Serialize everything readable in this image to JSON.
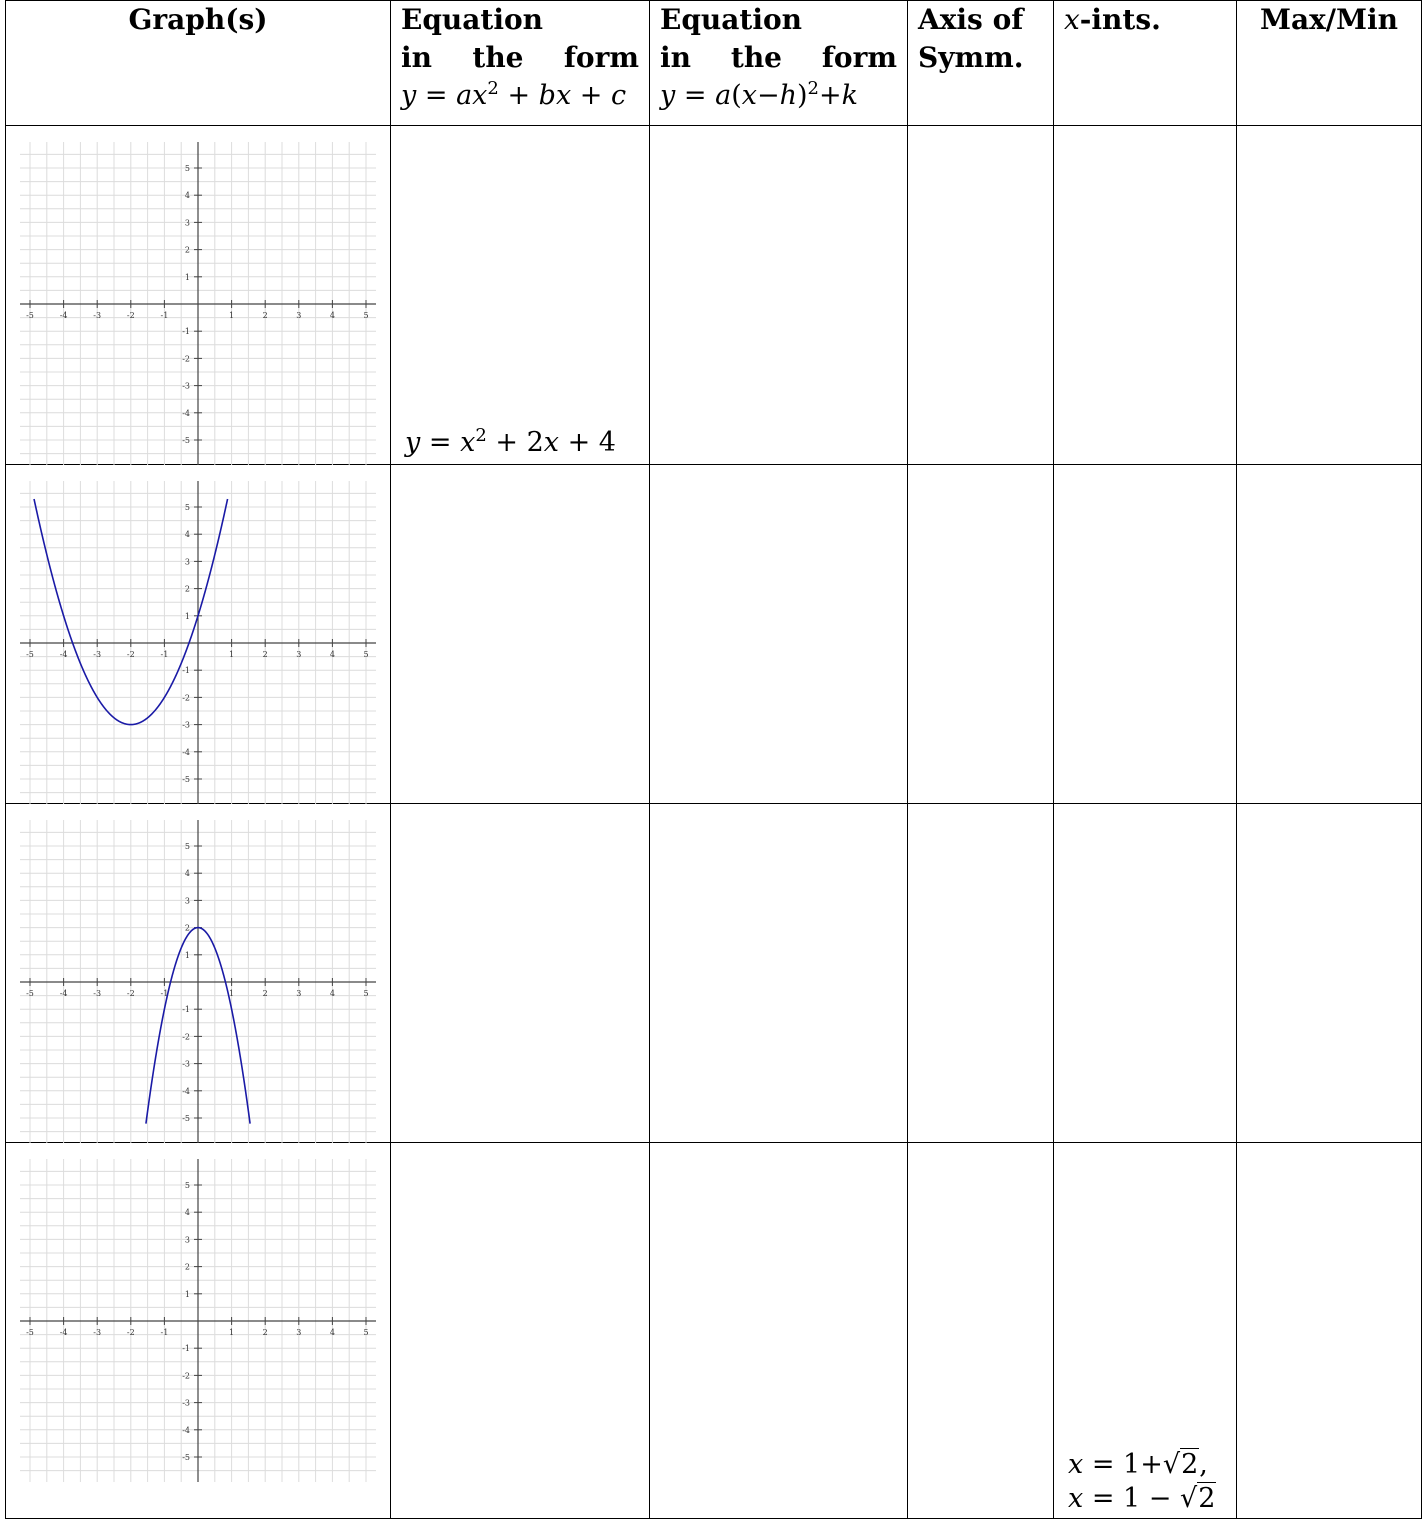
{
  "headers": {
    "graph": "Graph(s)",
    "std_eq": [
      "Equation",
      "in",
      "the",
      "form",
      "y = ax2 + bx + c"
    ],
    "vertex_eq": [
      "Equation",
      "in",
      "the",
      "form",
      "y = a(x−h)2 + k"
    ],
    "axis": [
      "Axis of",
      "Symm."
    ],
    "xints": "x-ints.",
    "maxmin": "Max/Min"
  },
  "grid": {
    "x_ticks": [
      "-5",
      "-4",
      "-3",
      "-2",
      "-1",
      "1",
      "2",
      "3",
      "4",
      "5"
    ],
    "y_ticks": [
      "5",
      "4",
      "3",
      "2",
      "1",
      "-1",
      "-2",
      "-3",
      "-4",
      "-5"
    ],
    "range": [
      -5,
      5
    ],
    "curve_color": "#1a1aa6"
  },
  "rows": [
    {
      "curve": null,
      "std_eq": "y = x2 + 2x + 4",
      "xints": []
    },
    {
      "curve": {
        "a": 1,
        "h": -2,
        "k": -3
      },
      "std_eq": "",
      "xints": []
    },
    {
      "curve": {
        "a": -3,
        "h": 0,
        "k": 2
      },
      "std_eq": "",
      "xints": []
    },
    {
      "curve": null,
      "std_eq": "",
      "xints": [
        "x = 1+√2,",
        "x = 1 − √2"
      ]
    }
  ]
}
